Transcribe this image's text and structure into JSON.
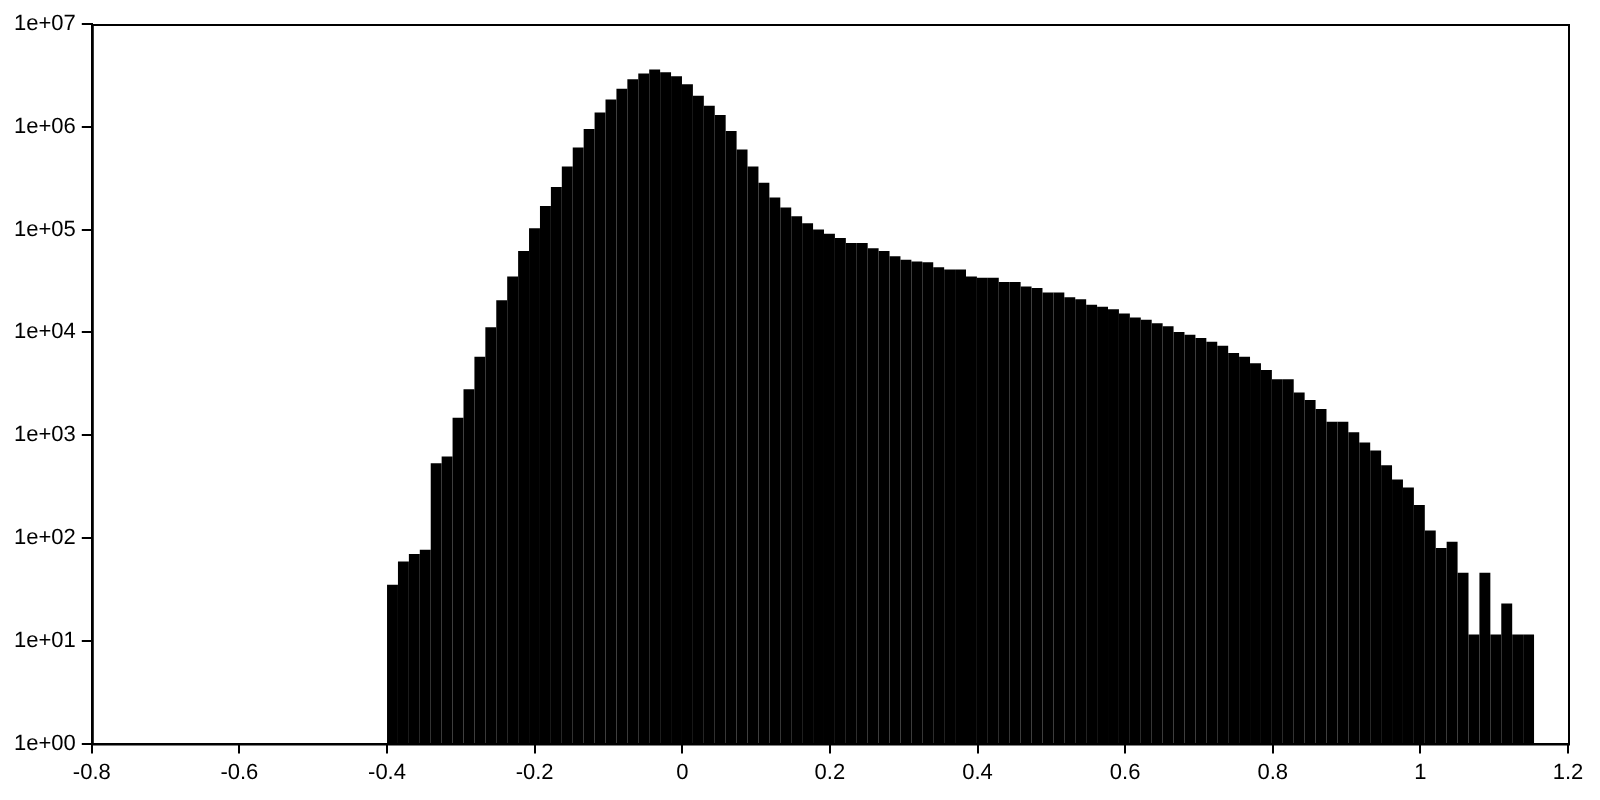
{
  "chart_data": {
    "type": "histogram",
    "color": "#000000",
    "log": "y",
    "grid": false,
    "legend": false,
    "bins": [
      -0.4,
      -0.3852,
      -0.3704,
      -0.3556,
      -0.3408,
      -0.326,
      -0.3112,
      -0.2964,
      -0.2816,
      -0.2668,
      -0.252,
      -0.2372,
      -0.2224,
      -0.2076,
      -0.1928,
      -0.178,
      -0.1632,
      -0.1484,
      -0.1336,
      -0.1188,
      -0.104,
      -0.0892,
      -0.0744,
      -0.0596,
      -0.0448,
      -0.03,
      -0.0152,
      -0.0004,
      0.0144,
      0.0292,
      0.044,
      0.0588,
      0.0736,
      0.0884,
      0.1032,
      0.118,
      0.1328,
      0.1476,
      0.1624,
      0.1772,
      0.192,
      0.2068,
      0.2216,
      0.2364,
      0.2512,
      0.266,
      0.2808,
      0.2956,
      0.3104,
      0.3252,
      0.34,
      0.3548,
      0.3696,
      0.3844,
      0.3992,
      0.414,
      0.4288,
      0.4436,
      0.4584,
      0.4732,
      0.488,
      0.5028,
      0.5176,
      0.5324,
      0.5472,
      0.562,
      0.5768,
      0.5916,
      0.6064,
      0.6212,
      0.636,
      0.6508,
      0.6656,
      0.6804,
      0.6952,
      0.71,
      0.7248,
      0.7396,
      0.7544,
      0.7692,
      0.784,
      0.7988,
      0.8136,
      0.8284,
      0.8432,
      0.858,
      0.8728,
      0.8876,
      0.9024,
      0.9172,
      0.932,
      0.9468,
      0.9616,
      0.9764,
      0.9912,
      1.006,
      1.0208,
      1.0356,
      1.0504,
      1.0652,
      1.08,
      1.0948,
      1.1096,
      1.1244,
      1.1392,
      1.154
    ],
    "values": [
      35,
      59,
      70,
      77,
      535,
      620,
      1480,
      2800,
      5800,
      11200,
      20500,
      35000,
      62000,
      103000,
      170000,
      260000,
      412000,
      630000,
      950000,
      1380000,
      1840000,
      2350000,
      2900000,
      3300000,
      3600000,
      3400000,
      3100000,
      2600000,
      2000000,
      1600000,
      1300000,
      910000,
      600000,
      410000,
      285000,
      205000,
      164000,
      135000,
      115000,
      100000,
      91000,
      83000,
      74000,
      74000,
      66000,
      62000,
      55000,
      51000,
      49000,
      48000,
      43000,
      41000,
      41000,
      35000,
      34000,
      34000,
      31000,
      31000,
      28000,
      27000,
      24500,
      24500,
      22000,
      21000,
      18600,
      17800,
      16800,
      15300,
      14000,
      13300,
      12300,
      11500,
      10100,
      9500,
      8800,
      8100,
      7400,
      6300,
      5800,
      5000,
      4300,
      3500,
      3500,
      2600,
      2200,
      1800,
      1350,
      1350,
      1070,
      850,
      710,
      510,
      370,
      310,
      210,
      118,
      80,
      92,
      46,
      11.5,
      46,
      11.5,
      23,
      11.5,
      11.5
    ],
    "xlim": [
      -0.8,
      1.2
    ],
    "xticks": [
      -0.8,
      -0.6,
      -0.4,
      -0.2,
      0,
      0.2,
      0.4,
      0.6,
      0.8,
      1,
      1.2
    ],
    "ylim": [
      1,
      10000000
    ],
    "yticks": [
      {
        "value": 1,
        "label": "1e+00"
      },
      {
        "value": 10,
        "label": "1e+01"
      },
      {
        "value": 100,
        "label": "1e+02"
      },
      {
        "value": 1000,
        "label": "1e+03"
      },
      {
        "value": 10000,
        "label": "1e+04"
      },
      {
        "value": 100000,
        "label": "1e+05"
      },
      {
        "value": 1000000,
        "label": "1e+06"
      },
      {
        "value": 10000000,
        "label": "1e+07"
      }
    ]
  }
}
